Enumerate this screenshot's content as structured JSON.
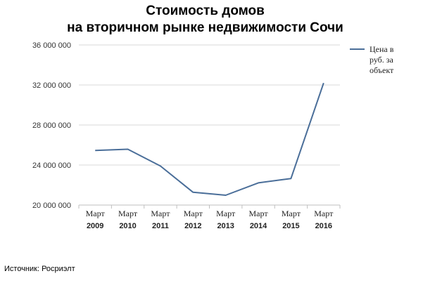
{
  "chart_data": {
    "type": "line",
    "title": "Стоимость домов",
    "subtitle": "на вторичном рынке недвижимости Сочи",
    "categories": [
      [
        "Март",
        "2009"
      ],
      [
        "Март",
        "2010"
      ],
      [
        "Март",
        "2011"
      ],
      [
        "Март",
        "2012"
      ],
      [
        "Март",
        "2013"
      ],
      [
        "Март",
        "2014"
      ],
      [
        "Март",
        "2015"
      ],
      [
        "Март",
        "2016"
      ]
    ],
    "series": [
      {
        "name": "Цена в руб. за объект",
        "legend_lines": [
          "Цена в",
          "руб. за",
          "объект"
        ],
        "values": [
          25450000,
          25580000,
          23900000,
          21280000,
          20980000,
          22220000,
          22650000,
          32200000
        ]
      }
    ],
    "y_ticks": [
      20000000,
      24000000,
      28000000,
      32000000,
      36000000
    ],
    "y_tick_labels": [
      "20 000 000",
      "24 000 000",
      "28 000 000",
      "32 000 000",
      "36 000 000"
    ],
    "ylim": [
      20000000,
      36000000
    ],
    "grid": true,
    "legend_position": "right",
    "colors": {
      "line": "#4a6e99",
      "grid": "#d9d9d9",
      "axis": "#bfbfbf"
    }
  },
  "source": "Источник: Росриэлт"
}
